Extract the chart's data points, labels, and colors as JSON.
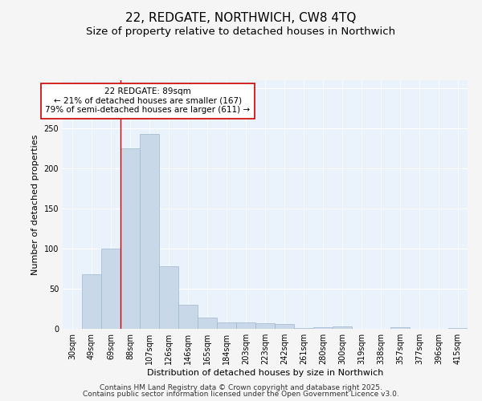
{
  "title1": "22, REDGATE, NORTHWICH, CW8 4TQ",
  "title2": "Size of property relative to detached houses in Northwich",
  "xlabel": "Distribution of detached houses by size in Northwich",
  "ylabel": "Number of detached properties",
  "categories": [
    "30sqm",
    "49sqm",
    "69sqm",
    "88sqm",
    "107sqm",
    "126sqm",
    "146sqm",
    "165sqm",
    "184sqm",
    "203sqm",
    "223sqm",
    "242sqm",
    "261sqm",
    "280sqm",
    "300sqm",
    "319sqm",
    "338sqm",
    "357sqm",
    "377sqm",
    "396sqm",
    "415sqm"
  ],
  "values": [
    0,
    68,
    100,
    225,
    243,
    78,
    30,
    14,
    8,
    8,
    7,
    6,
    1,
    2,
    3,
    0,
    0,
    2,
    0,
    0,
    1
  ],
  "bar_color": "#c8d8e8",
  "bar_edge_color": "#a0b8d0",
  "vline_index": 3,
  "vline_color": "#cc0000",
  "annotation_text1": "22 REDGATE: 89sqm",
  "annotation_text2": "← 21% of detached houses are smaller (167)",
  "annotation_text3": "79% of semi-detached houses are larger (611) →",
  "annotation_box_color": "#cc0000",
  "annotation_fill_color": "#ffffff",
  "footer1": "Contains HM Land Registry data © Crown copyright and database right 2025.",
  "footer2": "Contains public sector information licensed under the Open Government Licence v3.0.",
  "ylim": [
    0,
    310
  ],
  "yticks": [
    0,
    50,
    100,
    150,
    200,
    250,
    300
  ],
  "background_color": "#eaf2fb",
  "grid_color": "#ffffff",
  "title1_fontsize": 11,
  "title2_fontsize": 9.5,
  "axis_label_fontsize": 8,
  "tick_fontsize": 7,
  "footer_fontsize": 6.5,
  "annotation_fontsize": 7.5
}
